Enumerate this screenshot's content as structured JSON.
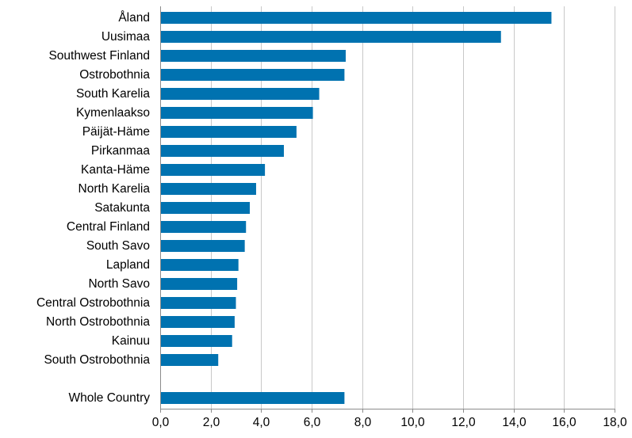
{
  "chart_data": {
    "type": "bar",
    "orientation": "horizontal",
    "categories": [
      "Åland",
      "Uusimaa",
      "Southwest Finland",
      "Ostrobothnia",
      "South Karelia",
      "Kymenlaakso",
      "Päijät-Häme",
      "Pirkanmaa",
      "Kanta-Häme",
      "North Karelia",
      "Satakunta",
      "Central Finland",
      "South Savo",
      "Lapland",
      "North Savo",
      "Central Ostrobothnia",
      "North Ostrobothnia",
      "Kainuu",
      "South Ostrobothnia",
      "",
      "Whole Country"
    ],
    "values": [
      15.5,
      13.5,
      7.35,
      7.3,
      6.3,
      6.05,
      5.4,
      4.9,
      4.15,
      3.8,
      3.55,
      3.4,
      3.35,
      3.1,
      3.05,
      3.0,
      2.95,
      2.85,
      2.3,
      null,
      7.3
    ],
    "title": "",
    "xlabel": "",
    "ylabel": "",
    "xlim": [
      0,
      18
    ],
    "ticks": [
      {
        "value": 0,
        "label": "0,0"
      },
      {
        "value": 2,
        "label": "2,0"
      },
      {
        "value": 4,
        "label": "4,0"
      },
      {
        "value": 6,
        "label": "6,0"
      },
      {
        "value": 8,
        "label": "8,0"
      },
      {
        "value": 10,
        "label": "10,0"
      },
      {
        "value": 12,
        "label": "12,0"
      },
      {
        "value": 14,
        "label": "14,0"
      },
      {
        "value": 16,
        "label": "16,0"
      },
      {
        "value": 18,
        "label": "18,0"
      }
    ],
    "grid": true,
    "legend": "none",
    "bar_color": "#0072b0"
  }
}
